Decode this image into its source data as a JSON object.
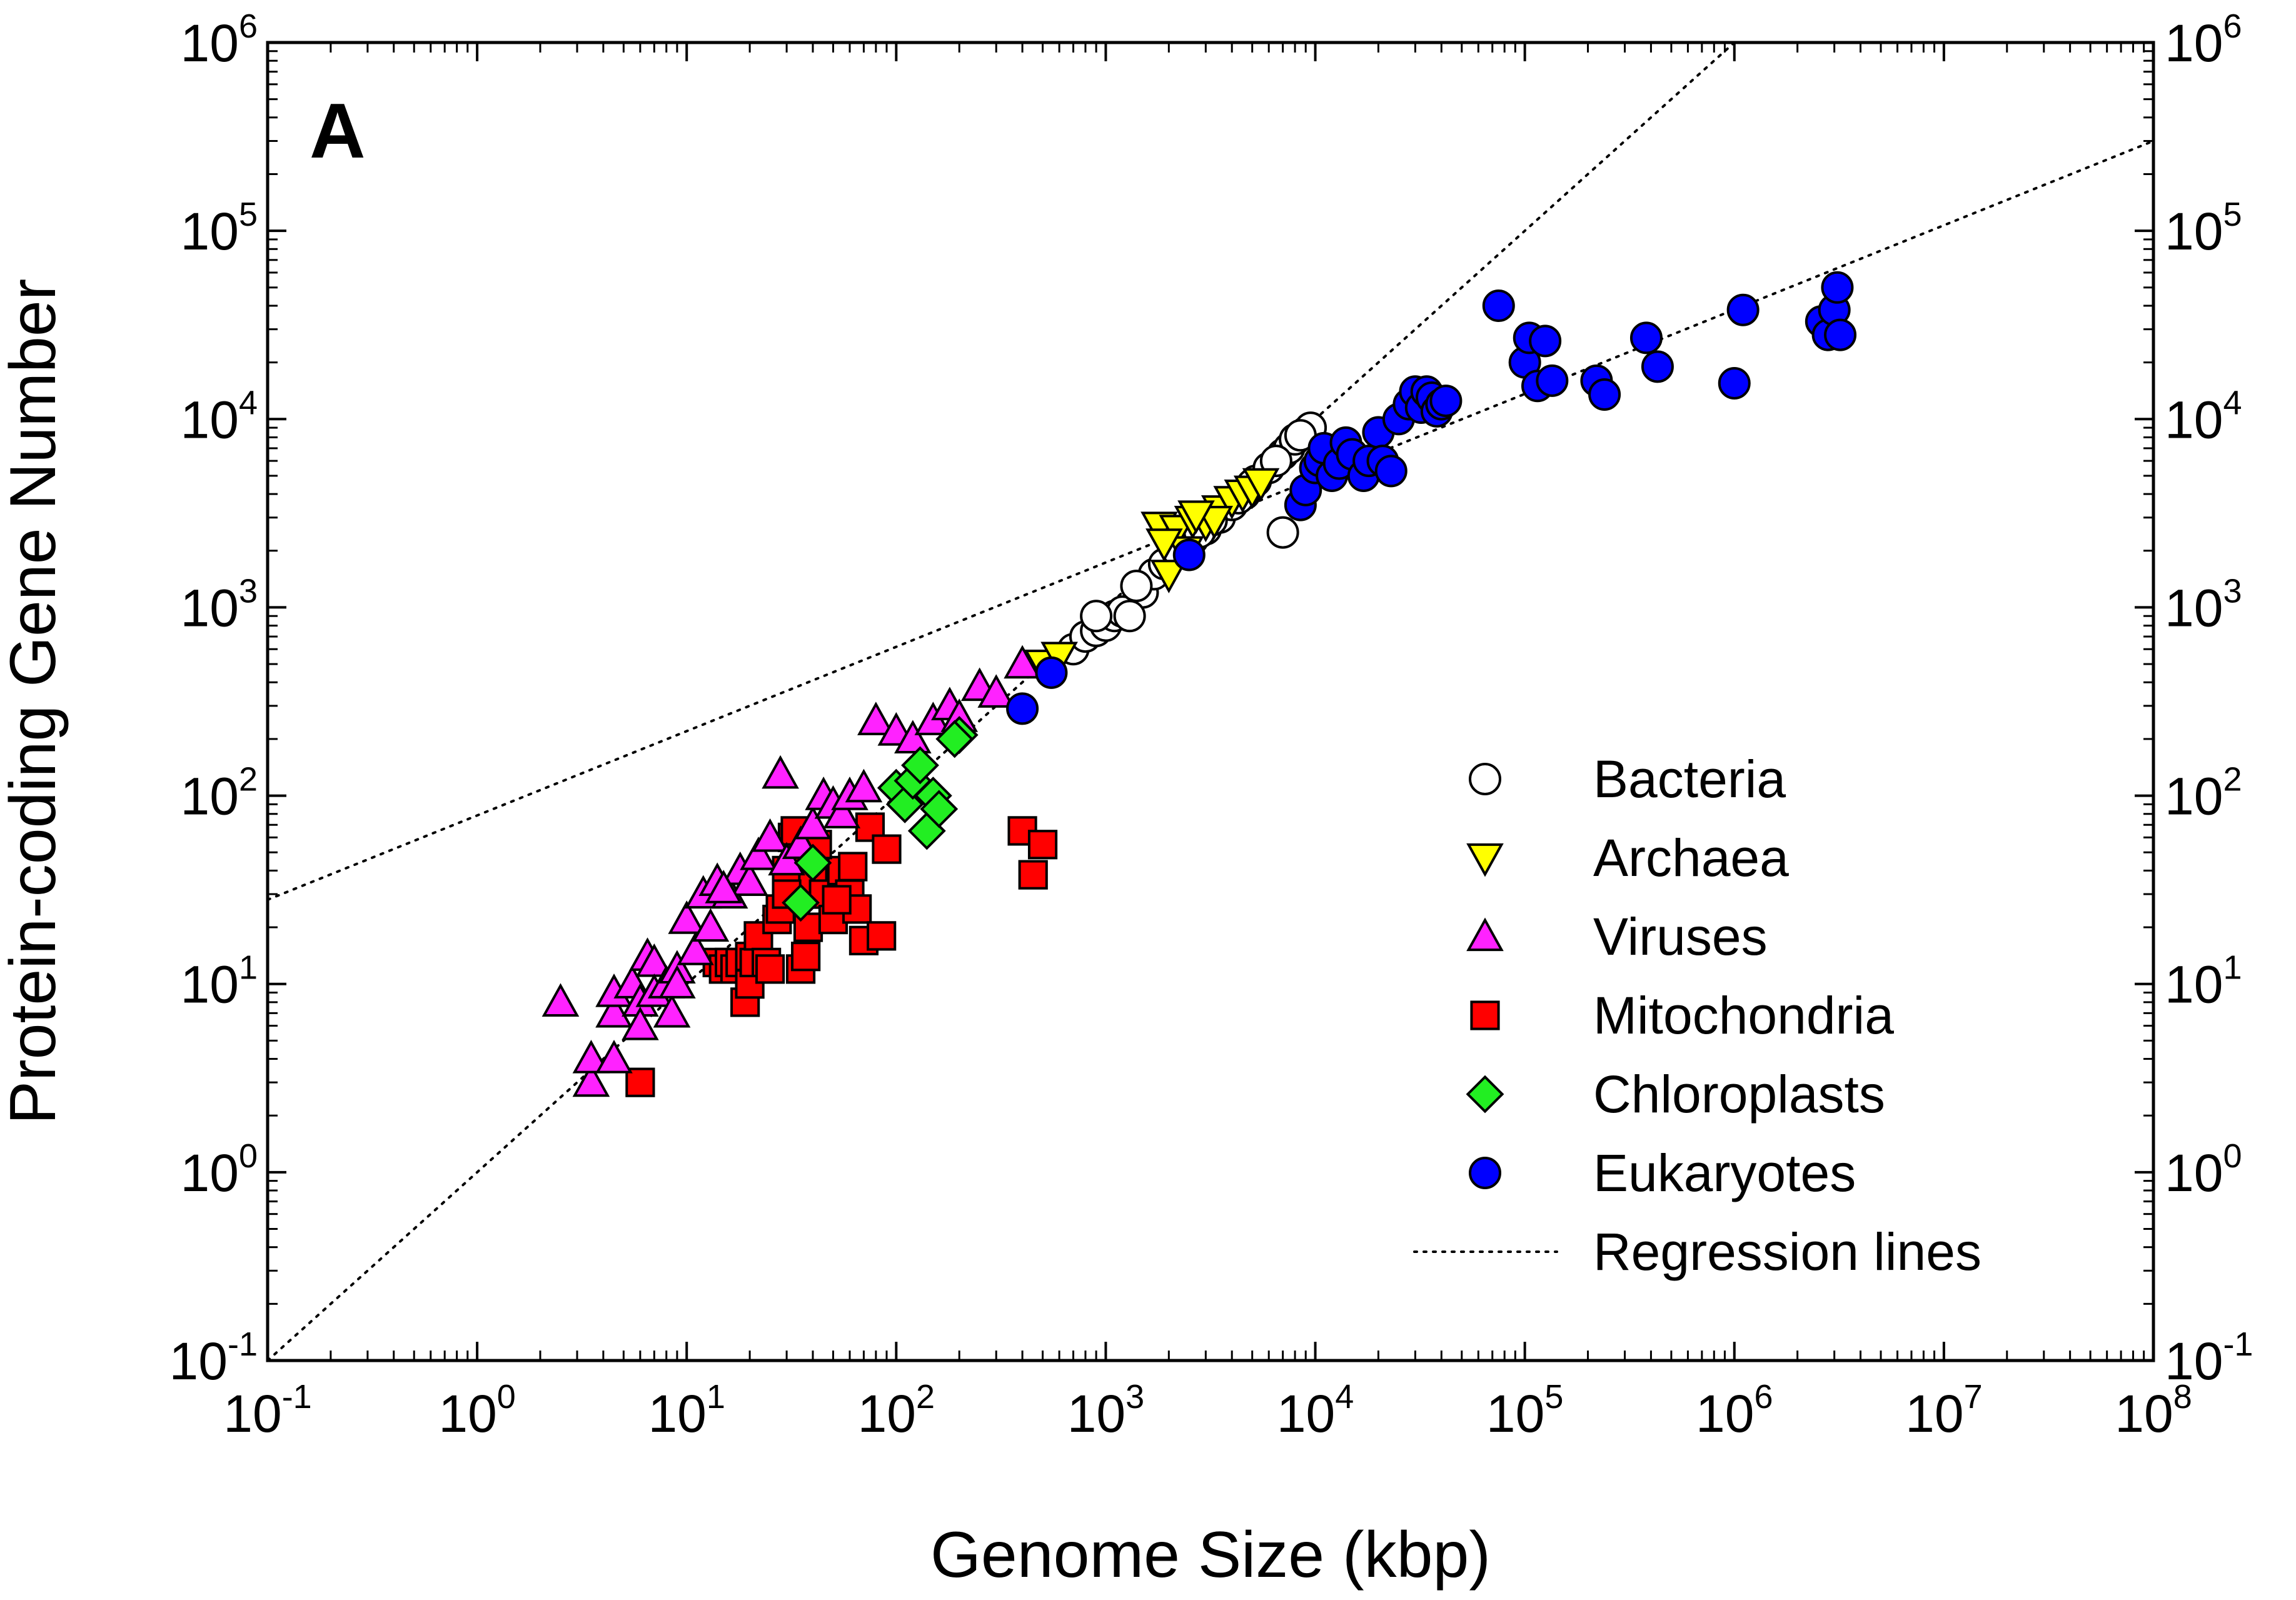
{
  "chart_data": {
    "type": "scatter",
    "panel_label": "A",
    "xlabel": "Genome Size (kbp)",
    "ylabel": "Protein-coding Gene Number",
    "x_scale": "log",
    "y_scale": "log",
    "xlim": [
      0.1,
      100000000
    ],
    "ylim": [
      0.1,
      1000000
    ],
    "grid": false,
    "legend_position": "bottom-right",
    "x_ticks": [
      {
        "base": "10",
        "exp": "-1"
      },
      {
        "base": "10",
        "exp": "0"
      },
      {
        "base": "10",
        "exp": "1"
      },
      {
        "base": "10",
        "exp": "2"
      },
      {
        "base": "10",
        "exp": "3"
      },
      {
        "base": "10",
        "exp": "4"
      },
      {
        "base": "10",
        "exp": "5"
      },
      {
        "base": "10",
        "exp": "6"
      },
      {
        "base": "10",
        "exp": "7"
      },
      {
        "base": "10",
        "exp": "8"
      }
    ],
    "y_ticks": [
      {
        "base": "10",
        "exp": "-1"
      },
      {
        "base": "10",
        "exp": "0"
      },
      {
        "base": "10",
        "exp": "1"
      },
      {
        "base": "10",
        "exp": "2"
      },
      {
        "base": "10",
        "exp": "3"
      },
      {
        "base": "10",
        "exp": "4"
      },
      {
        "base": "10",
        "exp": "5"
      },
      {
        "base": "10",
        "exp": "6"
      }
    ],
    "series": [
      {
        "name": "Bacteria",
        "marker": "circle",
        "color": "#ffffff",
        "points": [
          [
            700,
            600
          ],
          [
            800,
            700
          ],
          [
            900,
            750
          ],
          [
            1000,
            800
          ],
          [
            1100,
            900
          ],
          [
            1200,
            950
          ],
          [
            900,
            900
          ],
          [
            1500,
            1200
          ],
          [
            1700,
            1500
          ],
          [
            1900,
            1700
          ],
          [
            2200,
            2000
          ],
          [
            2600,
            2300
          ],
          [
            3000,
            2600
          ],
          [
            3500,
            3000
          ],
          [
            4000,
            3500
          ],
          [
            4600,
            4000
          ],
          [
            5200,
            4700
          ],
          [
            6000,
            5500
          ],
          [
            7000,
            6500
          ],
          [
            7500,
            7000
          ],
          [
            8000,
            7800
          ],
          [
            9000,
            8500
          ],
          [
            9500,
            9000
          ],
          [
            8500,
            8200
          ],
          [
            6500,
            6000
          ],
          [
            7000,
            2500
          ],
          [
            3200,
            2900
          ],
          [
            2800,
            2500
          ],
          [
            1400,
            1300
          ],
          [
            1300,
            900
          ],
          [
            5000,
            4500
          ],
          [
            4300,
            3800
          ]
        ]
      },
      {
        "name": "Archaea",
        "marker": "triangle-down",
        "color": "#ffff00",
        "points": [
          [
            500,
            500
          ],
          [
            600,
            550
          ],
          [
            1800,
            2700
          ],
          [
            2200,
            2600
          ],
          [
            2600,
            2900
          ],
          [
            3000,
            2800
          ],
          [
            3500,
            3300
          ],
          [
            4000,
            3700
          ],
          [
            4500,
            4000
          ],
          [
            5000,
            4200
          ],
          [
            2000,
            1500
          ],
          [
            2400,
            2000
          ],
          [
            1900,
            2200
          ],
          [
            3300,
            2900
          ],
          [
            5500,
            4600
          ],
          [
            2700,
            3100
          ]
        ]
      },
      {
        "name": "Viruses",
        "marker": "triangle-up",
        "color": "#ff22ff",
        "points": [
          [
            2.5,
            8
          ],
          [
            3.5,
            3
          ],
          [
            3.5,
            4
          ],
          [
            4.5,
            4
          ],
          [
            4.5,
            7
          ],
          [
            4.5,
            9
          ],
          [
            5.5,
            10
          ],
          [
            6,
            8
          ],
          [
            6.5,
            14
          ],
          [
            7,
            13
          ],
          [
            7,
            9
          ],
          [
            8,
            10
          ],
          [
            8.5,
            7
          ],
          [
            9,
            12
          ],
          [
            10,
            22
          ],
          [
            12,
            30
          ],
          [
            14,
            35
          ],
          [
            16,
            30
          ],
          [
            18,
            40
          ],
          [
            20,
            35
          ],
          [
            22,
            48
          ],
          [
            25,
            60
          ],
          [
            30,
            45
          ],
          [
            35,
            55
          ],
          [
            40,
            70
          ],
          [
            45,
            100
          ],
          [
            50,
            90
          ],
          [
            55,
            80
          ],
          [
            60,
            100
          ],
          [
            70,
            110
          ],
          [
            80,
            250
          ],
          [
            100,
            220
          ],
          [
            120,
            200
          ],
          [
            150,
            250
          ],
          [
            180,
            300
          ],
          [
            200,
            260
          ],
          [
            250,
            380
          ],
          [
            300,
            350
          ],
          [
            400,
            500
          ],
          [
            28,
            130
          ],
          [
            15,
            32
          ],
          [
            11,
            15
          ],
          [
            13,
            20
          ],
          [
            9,
            10
          ],
          [
            6,
            6
          ]
        ]
      },
      {
        "name": "Mitochondria",
        "marker": "square",
        "color": "#ff0000",
        "points": [
          [
            6,
            3
          ],
          [
            14,
            13
          ],
          [
            15,
            12
          ],
          [
            16,
            13
          ],
          [
            17,
            12
          ],
          [
            18,
            13
          ],
          [
            19,
            8
          ],
          [
            20,
            10
          ],
          [
            20,
            14
          ],
          [
            21,
            13
          ],
          [
            22,
            18
          ],
          [
            24,
            13
          ],
          [
            25,
            12
          ],
          [
            27,
            22
          ],
          [
            28,
            25
          ],
          [
            30,
            40
          ],
          [
            32,
            60
          ],
          [
            33,
            65
          ],
          [
            35,
            12
          ],
          [
            37,
            14
          ],
          [
            38,
            20
          ],
          [
            40,
            35
          ],
          [
            45,
            30
          ],
          [
            50,
            22
          ],
          [
            55,
            40
          ],
          [
            60,
            30
          ],
          [
            65,
            25
          ],
          [
            70,
            17
          ],
          [
            75,
            68
          ],
          [
            85,
            18
          ],
          [
            90,
            52
          ],
          [
            400,
            65
          ],
          [
            500,
            55
          ],
          [
            450,
            38
          ],
          [
            30,
            30
          ],
          [
            42,
            55
          ],
          [
            52,
            28
          ],
          [
            62,
            42
          ]
        ]
      },
      {
        "name": "Chloroplasts",
        "marker": "diamond",
        "color": "#22ee22",
        "points": [
          [
            35,
            27
          ],
          [
            40,
            44
          ],
          [
            100,
            110
          ],
          [
            110,
            90
          ],
          [
            120,
            120
          ],
          [
            130,
            145
          ],
          [
            140,
            65
          ],
          [
            150,
            100
          ],
          [
            160,
            85
          ],
          [
            200,
            210
          ],
          [
            190,
            200
          ]
        ]
      },
      {
        "name": "Eukaryotes",
        "marker": "circle",
        "color": "#0000ff",
        "points": [
          [
            400,
            290
          ],
          [
            550,
            450
          ],
          [
            2500,
            1900
          ],
          [
            8500,
            3500
          ],
          [
            9000,
            4200
          ],
          [
            10000,
            5500
          ],
          [
            10500,
            6000
          ],
          [
            11000,
            7000
          ],
          [
            12000,
            5000
          ],
          [
            13000,
            5800
          ],
          [
            14000,
            7500
          ],
          [
            15000,
            6500
          ],
          [
            17000,
            5000
          ],
          [
            18000,
            6000
          ],
          [
            20000,
            8500
          ],
          [
            21000,
            6000
          ],
          [
            23000,
            5300
          ],
          [
            25000,
            10000
          ],
          [
            28000,
            12000
          ],
          [
            30000,
            14000
          ],
          [
            32000,
            11500
          ],
          [
            34000,
            14000
          ],
          [
            36000,
            13000
          ],
          [
            38000,
            11000
          ],
          [
            40000,
            12000
          ],
          [
            42000,
            12500
          ],
          [
            75000,
            40000
          ],
          [
            100000,
            20000
          ],
          [
            105000,
            27000
          ],
          [
            115000,
            15000
          ],
          [
            125000,
            26000
          ],
          [
            135000,
            16000
          ],
          [
            220000,
            16000
          ],
          [
            240000,
            13500
          ],
          [
            380000,
            27000
          ],
          [
            430000,
            19000
          ],
          [
            1000000,
            15500
          ],
          [
            1100000,
            38000
          ],
          [
            2600000,
            33000
          ],
          [
            2800000,
            28000
          ],
          [
            3000000,
            38000
          ],
          [
            3100000,
            50000
          ],
          [
            3200000,
            28000
          ]
        ]
      }
    ],
    "regression_lines": {
      "name": "Regression lines",
      "lines": [
        {
          "x_start": 0.1,
          "y_start": 28,
          "x_end": 100000000,
          "y_end": 300000
        },
        {
          "x_start": 0.1,
          "y_start": 0.1,
          "x_end": 1000000,
          "y_end": 1000000
        }
      ]
    }
  }
}
